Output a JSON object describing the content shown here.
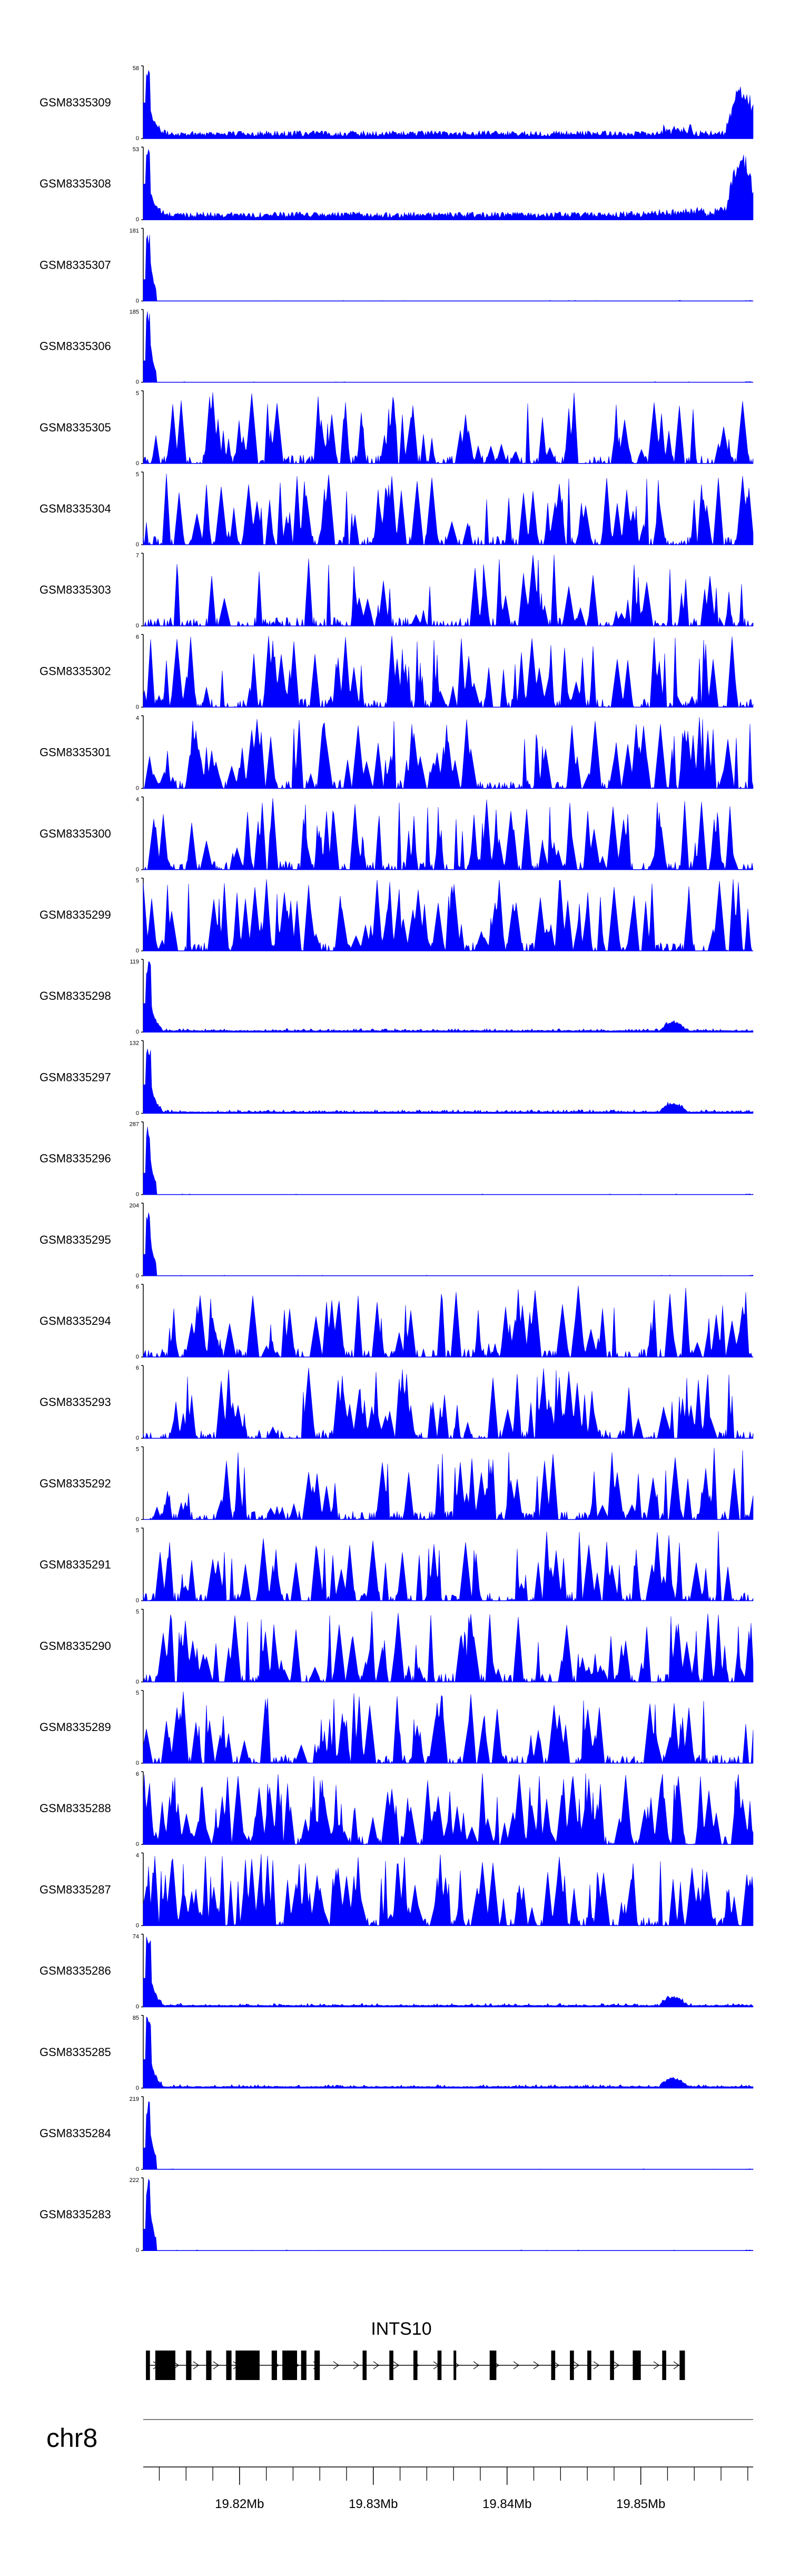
{
  "chart_data": {
    "type": "area",
    "title": "",
    "xlabel": "",
    "ylabel": "",
    "chromosome": "chr8",
    "gene": {
      "name": "INTS10",
      "strand": "+"
    },
    "xlim": [
      19.8128,
      19.8584
    ],
    "x_ticks": [
      {
        "value": 19.82,
        "label": "19.82Mb"
      },
      {
        "value": 19.83,
        "label": "19.83Mb"
      },
      {
        "value": 19.84,
        "label": "19.84Mb"
      },
      {
        "value": 19.85,
        "label": "19.85Mb"
      }
    ],
    "color": "#0000ff",
    "tracks": [
      {
        "name": "GSM8335309",
        "ymax": "58",
        "profile": "wide_tail"
      },
      {
        "name": "GSM8335308",
        "ymax": "53",
        "profile": "wide_tail2"
      },
      {
        "name": "GSM8335307",
        "ymax": "181",
        "profile": "tall_peak"
      },
      {
        "name": "GSM8335306",
        "ymax": "185",
        "profile": "tall_peak"
      },
      {
        "name": "GSM8335305",
        "ymax": "5",
        "profile": "noise"
      },
      {
        "name": "GSM8335304",
        "ymax": "5",
        "profile": "noise"
      },
      {
        "name": "GSM8335303",
        "ymax": "7",
        "profile": "noise_sparse"
      },
      {
        "name": "GSM8335302",
        "ymax": "6",
        "profile": "noise"
      },
      {
        "name": "GSM8335301",
        "ymax": "4",
        "profile": "noise"
      },
      {
        "name": "GSM8335300",
        "ymax": "4",
        "profile": "noise"
      },
      {
        "name": "GSM8335299",
        "ymax": "5",
        "profile": "noise"
      },
      {
        "name": "GSM8335298",
        "ymax": "119",
        "profile": "peak_low"
      },
      {
        "name": "GSM8335297",
        "ymax": "132",
        "profile": "peak_low"
      },
      {
        "name": "GSM8335296",
        "ymax": "287",
        "profile": "tall_peak"
      },
      {
        "name": "GSM8335295",
        "ymax": "204",
        "profile": "tall_peak"
      },
      {
        "name": "GSM8335294",
        "ymax": "6",
        "profile": "noise"
      },
      {
        "name": "GSM8335293",
        "ymax": "6",
        "profile": "noise"
      },
      {
        "name": "GSM8335292",
        "ymax": "5",
        "profile": "noise"
      },
      {
        "name": "GSM8335291",
        "ymax": "5",
        "profile": "noise"
      },
      {
        "name": "GSM8335290",
        "ymax": "5",
        "profile": "noise"
      },
      {
        "name": "GSM8335289",
        "ymax": "5",
        "profile": "noise"
      },
      {
        "name": "GSM8335288",
        "ymax": "6",
        "profile": "noise_dense"
      },
      {
        "name": "GSM8335287",
        "ymax": "4",
        "profile": "noise_dense"
      },
      {
        "name": "GSM8335286",
        "ymax": "74",
        "profile": "peak_low"
      },
      {
        "name": "GSM8335285",
        "ymax": "85",
        "profile": "peak_low"
      },
      {
        "name": "GSM8335284",
        "ymax": "219",
        "profile": "tall_peak"
      },
      {
        "name": "GSM8335283",
        "ymax": "222",
        "profile": "tall_peak"
      }
    ],
    "exons": [
      [
        19.813,
        19.8133
      ],
      [
        19.8137,
        19.8152
      ],
      [
        19.816,
        19.8164
      ],
      [
        19.8175,
        19.8179
      ],
      [
        19.819,
        19.8194
      ],
      [
        19.8197,
        19.8215
      ],
      [
        19.8224,
        19.8228
      ],
      [
        19.8232,
        19.8243
      ],
      [
        19.8246,
        19.825
      ],
      [
        19.8256,
        19.826
      ],
      [
        19.8292,
        19.8295
      ],
      [
        19.8312,
        19.8315
      ],
      [
        19.833,
        19.8333
      ],
      [
        19.8348,
        19.8351
      ],
      [
        19.836,
        19.8362
      ],
      [
        19.8387,
        19.8392
      ],
      [
        19.8433,
        19.8436
      ],
      [
        19.8447,
        19.845
      ],
      [
        19.846,
        19.8463
      ],
      [
        19.8477,
        19.848
      ],
      [
        19.8494,
        19.85
      ],
      [
        19.8516,
        19.8519
      ],
      [
        19.8529,
        19.8533
      ]
    ],
    "grid": false,
    "legend": "none"
  }
}
